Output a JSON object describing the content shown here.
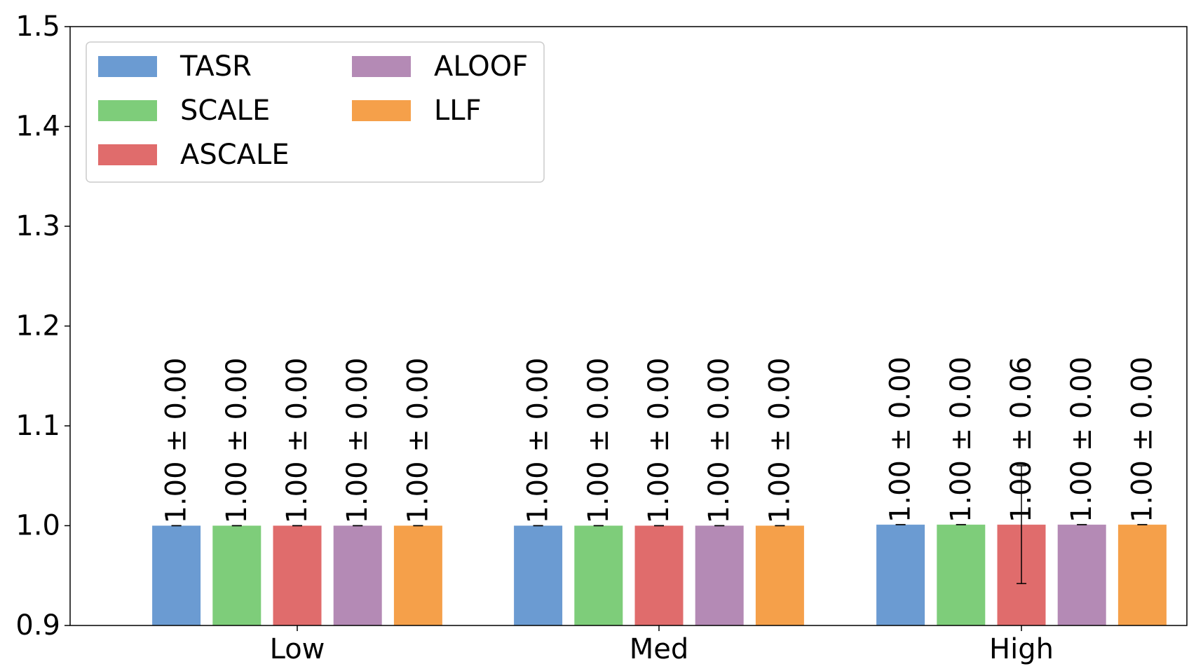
{
  "chart_data": {
    "type": "bar",
    "categories": [
      "Low",
      "Med",
      "High"
    ],
    "ylim": [
      0.9,
      1.5
    ],
    "yticks": [
      "0.9",
      "1.0",
      "1.1",
      "1.2",
      "1.3",
      "1.4",
      "1.5"
    ],
    "ytick_values": [
      0.9,
      1.0,
      1.1,
      1.2,
      1.3,
      1.4,
      1.5
    ],
    "grid": false,
    "legend_position": "top-left",
    "legend_columns": 2,
    "series": [
      {
        "name": "TASR",
        "color": "#6b9bd2",
        "values": [
          1.0,
          1.0,
          1.001
        ],
        "errors": [
          0.0,
          0.0,
          0.0
        ],
        "labels": [
          "1.00 ± 0.00",
          "1.00 ± 0.00",
          "1.00 ± 0.00"
        ]
      },
      {
        "name": "SCALE",
        "color": "#7ecd7a",
        "values": [
          1.0,
          1.0,
          1.001
        ],
        "errors": [
          0.0,
          0.0,
          0.0
        ],
        "labels": [
          "1.00 ± 0.00",
          "1.00 ± 0.00",
          "1.00 ± 0.00"
        ]
      },
      {
        "name": "ASCALE",
        "color": "#e06c6c",
        "values": [
          1.0,
          1.0,
          1.001
        ],
        "errors": [
          0.0,
          0.0,
          0.059
        ],
        "labels": [
          "1.00 ± 0.00",
          "1.00 ± 0.00",
          "1.00 ± 0.06"
        ]
      },
      {
        "name": "ALOOF",
        "color": "#b48ab5",
        "values": [
          1.0,
          1.0,
          1.001
        ],
        "errors": [
          0.0,
          0.0,
          0.0
        ],
        "labels": [
          "1.00 ± 0.00",
          "1.00 ± 0.00",
          "1.00 ± 0.00"
        ]
      },
      {
        "name": "LLF",
        "color": "#f5a04a",
        "values": [
          1.0,
          1.0,
          1.001
        ],
        "errors": [
          0.0,
          0.0,
          0.0
        ],
        "labels": [
          "1.00 ± 0.00",
          "1.00 ± 0.00",
          "1.00 ± 0.00"
        ]
      }
    ]
  }
}
